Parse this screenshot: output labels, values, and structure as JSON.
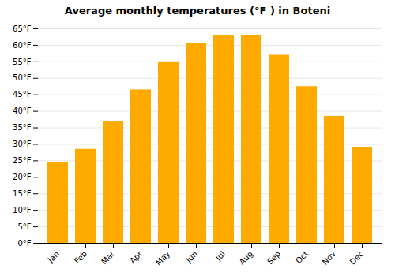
{
  "chart_data": {
    "type": "bar",
    "title": "Average monthly temperatures (°F ) in Boteni",
    "categories": [
      "Jan",
      "Feb",
      "Mar",
      "Apr",
      "May",
      "Jun",
      "Jul",
      "Aug",
      "Sep",
      "Oct",
      "Nov",
      "Dec"
    ],
    "values": [
      24.5,
      28.5,
      37,
      46.5,
      55,
      60.5,
      63,
      63,
      57,
      47.5,
      38.5,
      29
    ],
    "color": "#FFAA00",
    "ylim": [
      0,
      65
    ],
    "yticks": [
      {
        "value": 0,
        "label": "0°F"
      },
      {
        "value": 5,
        "label": "5°F"
      },
      {
        "value": 10,
        "label": "10°F"
      },
      {
        "value": 15,
        "label": "15°F"
      },
      {
        "value": 20,
        "label": "20°F"
      },
      {
        "value": 25,
        "label": "25°F"
      },
      {
        "value": 30,
        "label": "30°F"
      },
      {
        "value": 35,
        "label": "35°F"
      },
      {
        "value": 40,
        "label": "40°F"
      },
      {
        "value": 45,
        "label": "45°F"
      },
      {
        "value": 50,
        "label": "50°F"
      },
      {
        "value": 55,
        "label": "55°F"
      },
      {
        "value": 60,
        "label": "60°F"
      },
      {
        "value": 65,
        "label": "65°F"
      }
    ],
    "grid": true
  }
}
